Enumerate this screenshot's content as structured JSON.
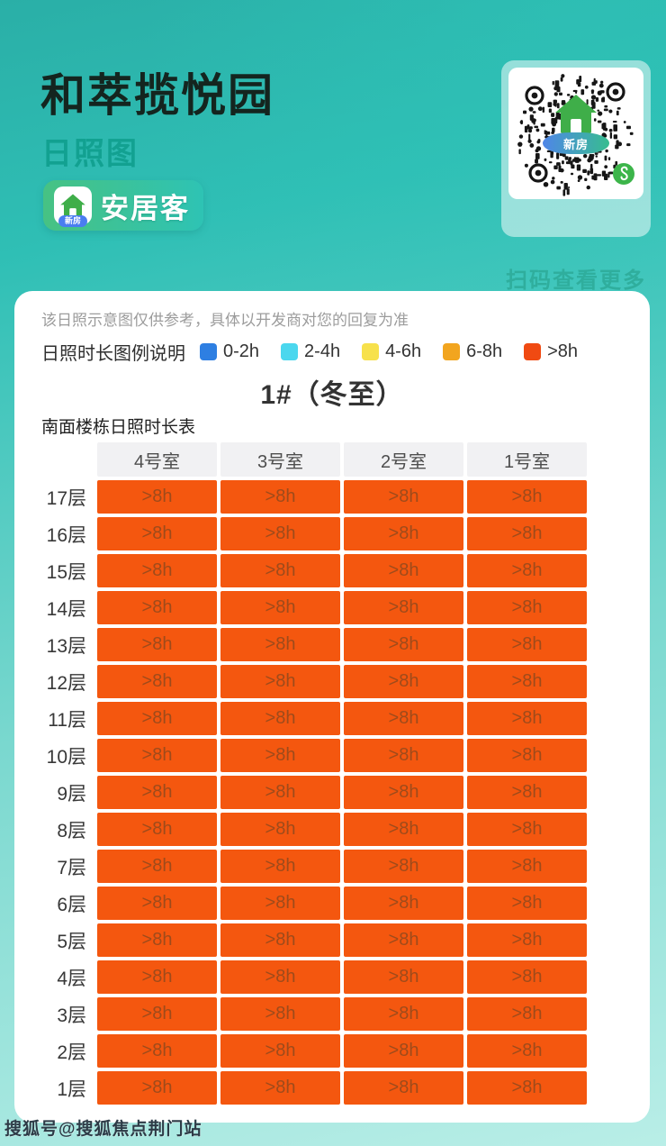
{
  "header": {
    "title": "和萃揽悦园",
    "subtitle": "日照图",
    "brand": {
      "name": "安居客",
      "tag": "新房"
    },
    "qr": {
      "caption": "扫码查看更多",
      "center_tag": "新房"
    }
  },
  "panel": {
    "disclaimer": "该日照示意图仅供参考，具体以开发商对您的回复为准",
    "table": {
      "cell_color": "#f4570f",
      "cell_text_color": "#9e4b1b",
      "header_bg": "#f1f1f3"
    }
  },
  "watermark": "搜狐号@搜狐焦点荆门站",
  "chart_data": {
    "type": "heatmap",
    "title": "1#（冬至）",
    "subtitle": "南面楼栋日照时长表",
    "note": "该日照示意图仅供参考，具体以开发商对您的回复为准",
    "columns": [
      "4号室",
      "3号室",
      "2号室",
      "1号室"
    ],
    "rows": [
      "17层",
      "16层",
      "15层",
      "14层",
      "13层",
      "12层",
      "11层",
      "10层",
      "9层",
      "8层",
      "7层",
      "6层",
      "5层",
      "4层",
      "3层",
      "2层",
      "1层"
    ],
    "values": [
      [
        ">8h",
        ">8h",
        ">8h",
        ">8h"
      ],
      [
        ">8h",
        ">8h",
        ">8h",
        ">8h"
      ],
      [
        ">8h",
        ">8h",
        ">8h",
        ">8h"
      ],
      [
        ">8h",
        ">8h",
        ">8h",
        ">8h"
      ],
      [
        ">8h",
        ">8h",
        ">8h",
        ">8h"
      ],
      [
        ">8h",
        ">8h",
        ">8h",
        ">8h"
      ],
      [
        ">8h",
        ">8h",
        ">8h",
        ">8h"
      ],
      [
        ">8h",
        ">8h",
        ">8h",
        ">8h"
      ],
      [
        ">8h",
        ">8h",
        ">8h",
        ">8h"
      ],
      [
        ">8h",
        ">8h",
        ">8h",
        ">8h"
      ],
      [
        ">8h",
        ">8h",
        ">8h",
        ">8h"
      ],
      [
        ">8h",
        ">8h",
        ">8h",
        ">8h"
      ],
      [
        ">8h",
        ">8h",
        ">8h",
        ">8h"
      ],
      [
        ">8h",
        ">8h",
        ">8h",
        ">8h"
      ],
      [
        ">8h",
        ">8h",
        ">8h",
        ">8h"
      ],
      [
        ">8h",
        ">8h",
        ">8h",
        ">8h"
      ],
      [
        ">8h",
        ">8h",
        ">8h",
        ">8h"
      ]
    ],
    "legend": {
      "label": "日照时长图例说明",
      "bins": [
        {
          "label": "0-2h",
          "color": "#2e7fe2"
        },
        {
          "label": "2-4h",
          "color": "#4bd7ee"
        },
        {
          "label": "4-6h",
          "color": "#f7e14c"
        },
        {
          "label": "6-8h",
          "color": "#f2a51f"
        },
        {
          "label": ">8h",
          "color": "#f04a12"
        }
      ]
    }
  }
}
